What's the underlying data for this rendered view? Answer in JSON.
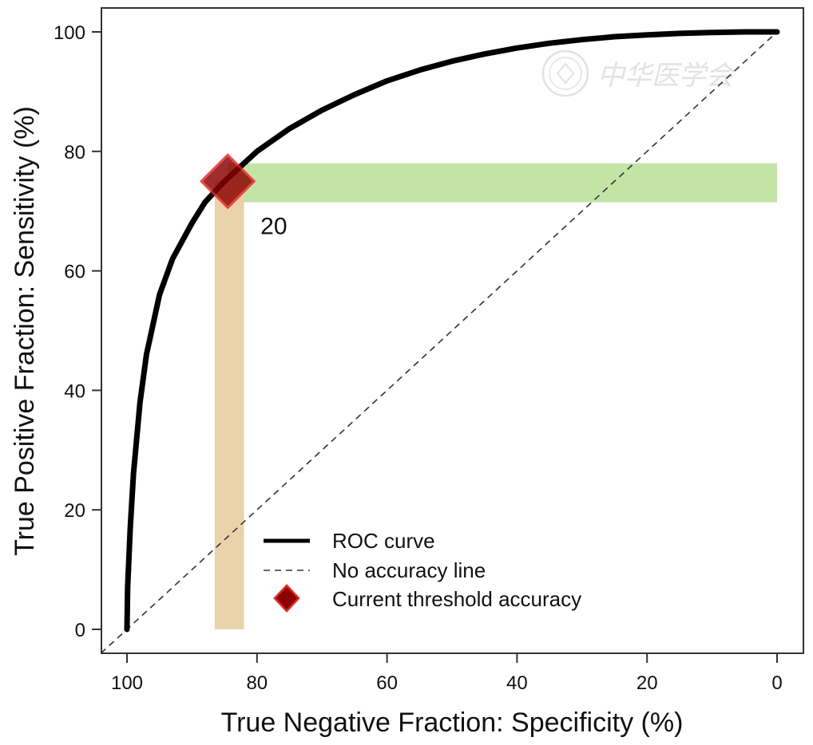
{
  "chart_data": {
    "type": "line",
    "xlabel": "True Negative Fraction: Specificity (%)",
    "ylabel": "True Positive Fraction: Sensitivity (%)",
    "xlim": [
      100,
      0
    ],
    "ylim": [
      0,
      100
    ],
    "x_reversed": true,
    "x_ticks": [
      "100",
      "80",
      "60",
      "40",
      "20",
      "0"
    ],
    "y_ticks": [
      "0",
      "20",
      "40",
      "60",
      "80",
      "100"
    ],
    "grid": false,
    "legend_position": "bottom-center",
    "series": [
      {
        "name": "ROC curve",
        "style": "solid",
        "color": "#000000",
        "x": [
          100,
          99.9,
          99.5,
          99,
          98,
          97,
          95,
          93,
          90,
          88,
          85,
          82,
          80,
          75,
          70,
          65,
          60,
          55,
          50,
          45,
          40,
          35,
          30,
          25,
          20,
          15,
          10,
          5,
          0
        ],
        "y": [
          0,
          7,
          17,
          26,
          38,
          46,
          56,
          62,
          68,
          71.5,
          75,
          78,
          80,
          83.8,
          86.9,
          89.5,
          91.8,
          93.6,
          95.1,
          96.3,
          97.3,
          98.1,
          98.7,
          99.2,
          99.5,
          99.75,
          99.9,
          100,
          100
        ]
      },
      {
        "name": "No accuracy line",
        "style": "dashed",
        "color": "#333333",
        "x": [
          104,
          0
        ],
        "y": [
          -4,
          100
        ]
      }
    ],
    "threshold": {
      "name": "Current threshold accuracy",
      "label": "20",
      "specificity": 84.5,
      "sensitivity": 75,
      "sensitivity_band": [
        71.5,
        78
      ],
      "specificity_band": [
        82,
        86.5
      ],
      "marker_color": "#8b0000",
      "marker_edge": "#ee2222"
    },
    "band_colors": {
      "sensitivity": "#bfe3a0",
      "specificity": "#e9d1a5"
    }
  },
  "legend": {
    "items": [
      "ROC curve",
      "No accuracy line",
      "Current threshold accuracy"
    ]
  },
  "watermark": {
    "text": "中华医学会"
  }
}
